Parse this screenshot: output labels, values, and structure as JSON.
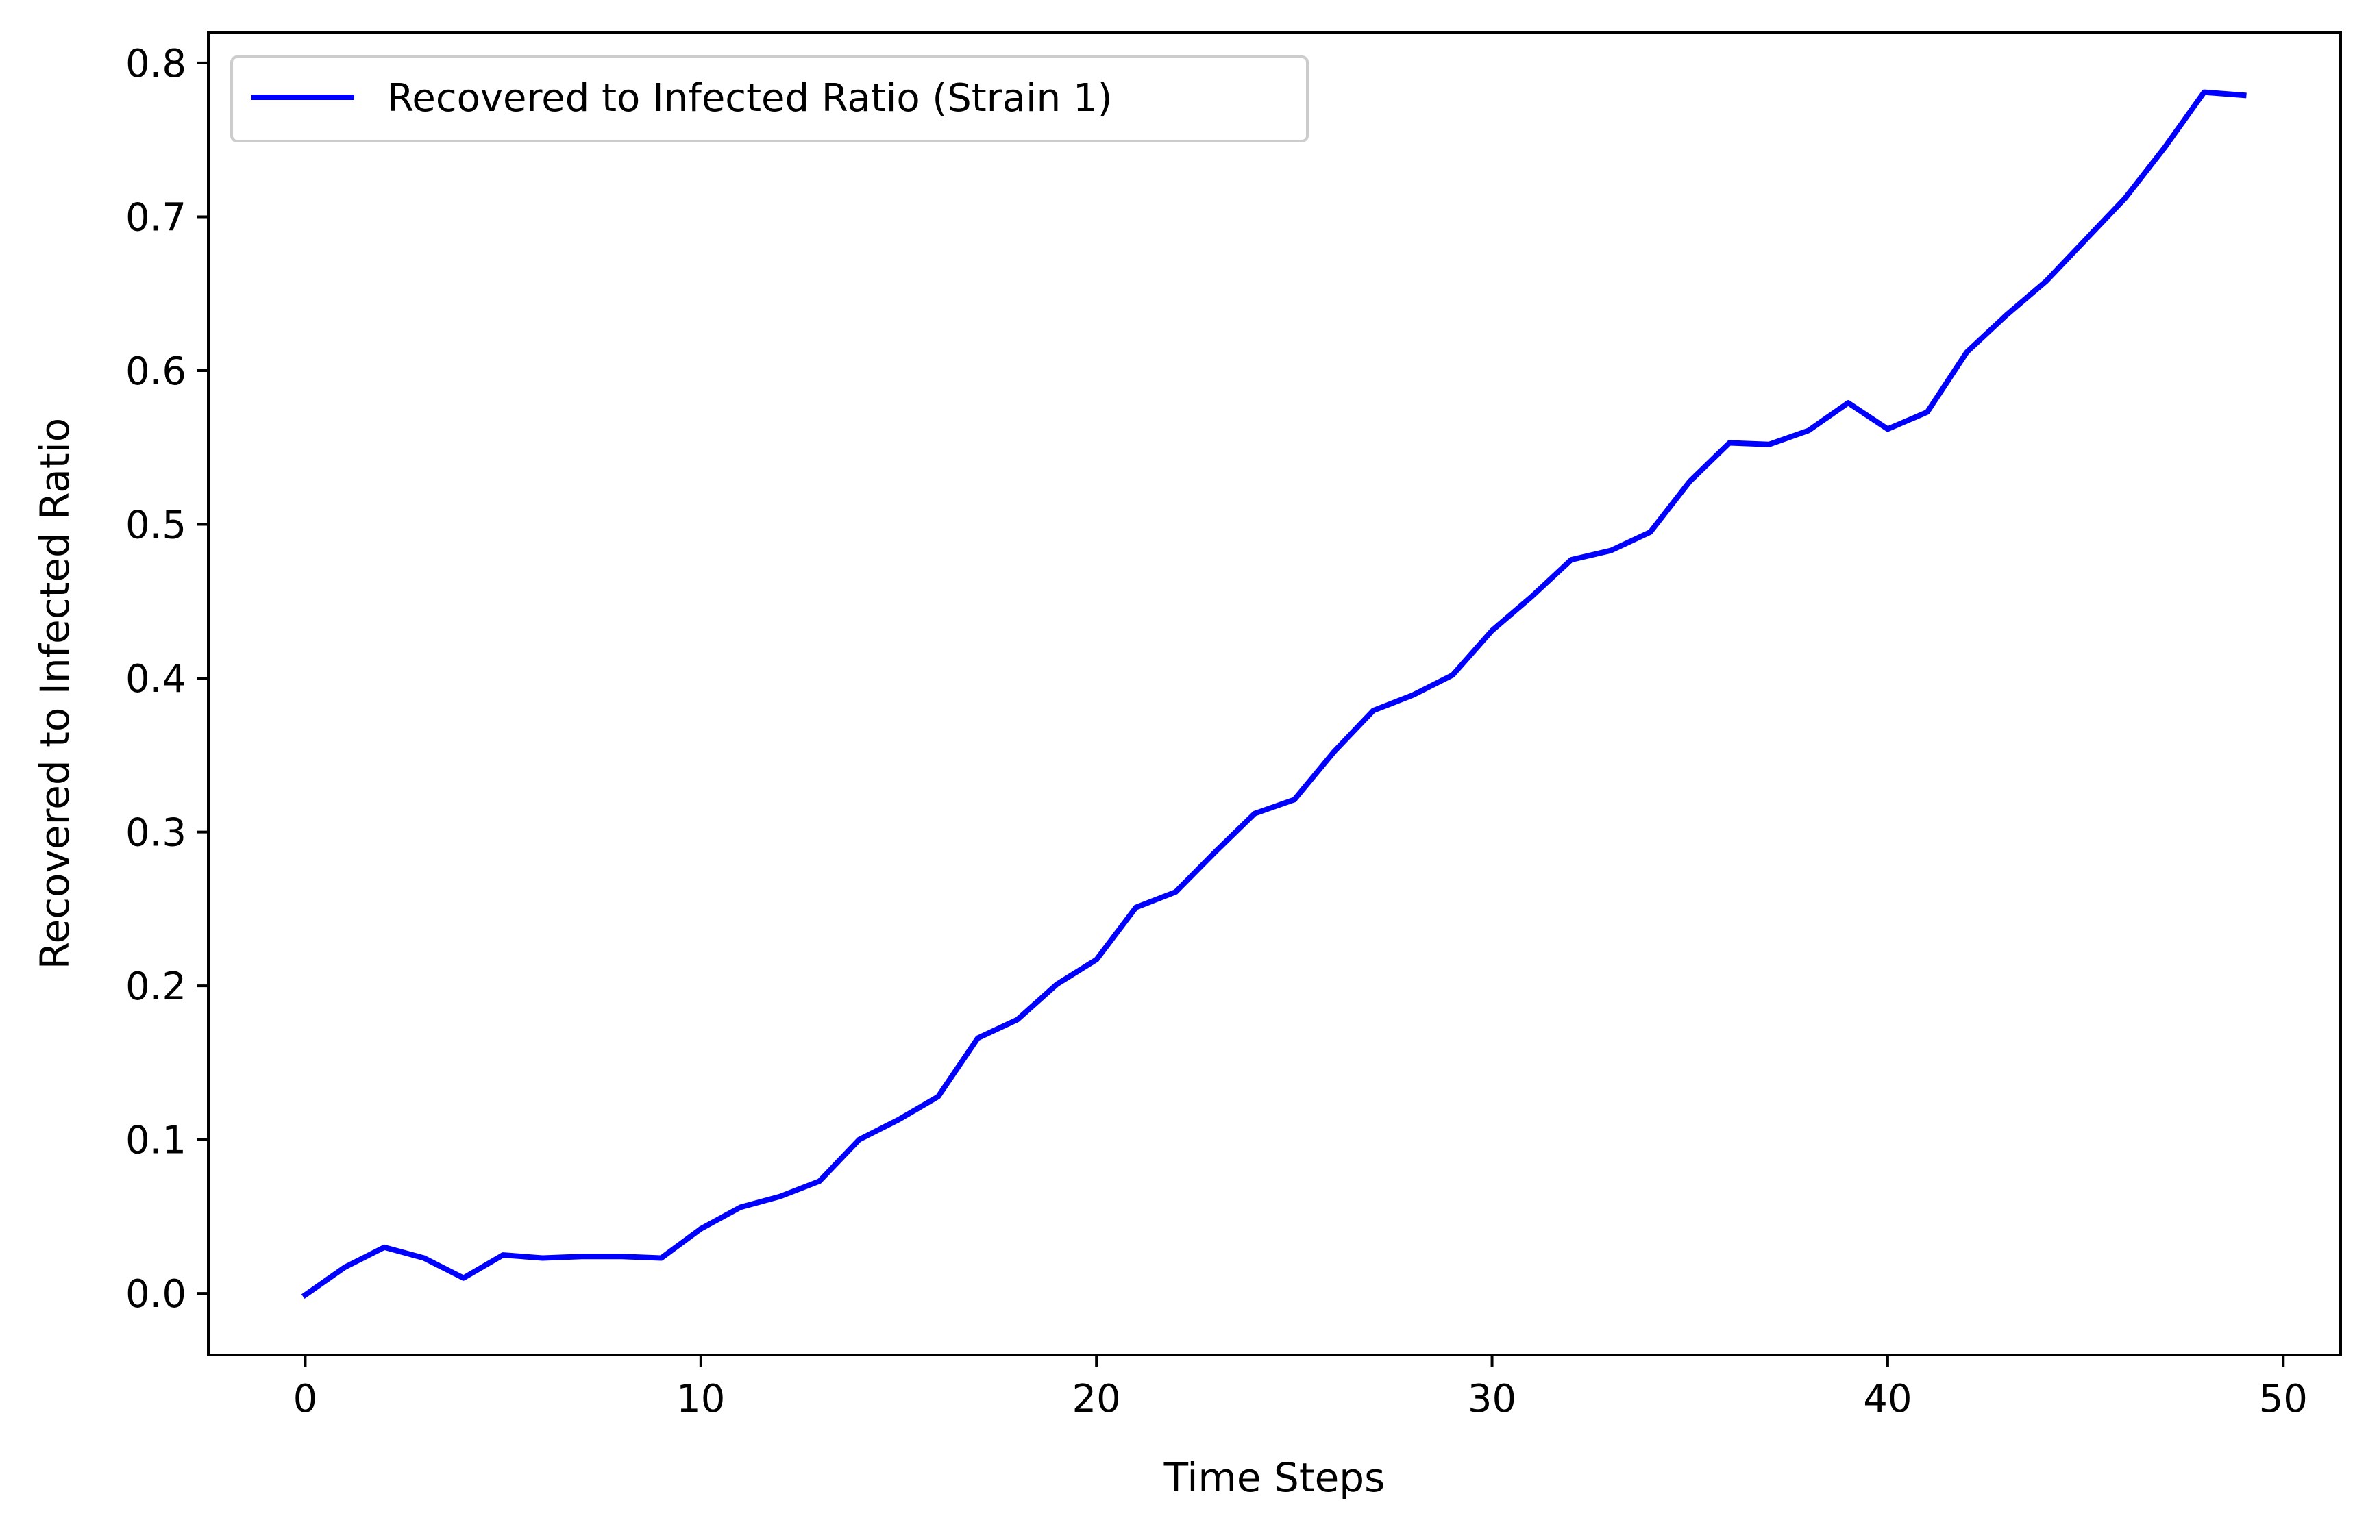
{
  "chart_data": {
    "type": "line",
    "title": "",
    "xlabel": "Time Steps",
    "ylabel": "Recovered to Infected Ratio",
    "xlim": [
      -2.45,
      51.45
    ],
    "ylim": [
      -0.04,
      0.82
    ],
    "xticks": [
      0,
      10,
      20,
      30,
      40,
      50
    ],
    "xtick_labels": [
      "0",
      "10",
      "20",
      "30",
      "40",
      "50"
    ],
    "yticks": [
      0.0,
      0.1,
      0.2,
      0.3,
      0.4,
      0.5,
      0.6,
      0.7,
      0.8
    ],
    "ytick_labels": [
      "0.0",
      "0.1",
      "0.2",
      "0.3",
      "0.4",
      "0.5",
      "0.6",
      "0.7",
      "0.8"
    ],
    "grid": false,
    "legend_position": "top-left",
    "x": [
      0,
      1,
      2,
      3,
      4,
      5,
      6,
      7,
      8,
      9,
      10,
      11,
      12,
      13,
      14,
      15,
      16,
      17,
      18,
      19,
      20,
      21,
      22,
      23,
      24,
      25,
      26,
      27,
      28,
      29,
      30,
      31,
      32,
      33,
      34,
      35,
      36,
      37,
      38,
      39,
      40,
      41,
      42,
      43,
      44,
      45,
      46,
      47,
      48,
      49
    ],
    "series": [
      {
        "name": "Recovered to Infected Ratio (Strain 1)",
        "color": "#0000ff",
        "values": [
          -0.001,
          0.017,
          0.03,
          0.023,
          0.01,
          0.025,
          0.023,
          0.024,
          0.024,
          0.023,
          0.042,
          0.056,
          0.063,
          0.073,
          0.1,
          0.113,
          0.128,
          0.166,
          0.178,
          0.201,
          0.217,
          0.251,
          0.261,
          0.287,
          0.312,
          0.321,
          0.352,
          0.379,
          0.389,
          0.402,
          0.431,
          0.453,
          0.477,
          0.483,
          0.495,
          0.528,
          0.553,
          0.552,
          0.561,
          0.579,
          0.562,
          0.573,
          0.612,
          0.636,
          0.658,
          0.685,
          0.712,
          0.745,
          0.781,
          0.779
        ]
      }
    ]
  }
}
